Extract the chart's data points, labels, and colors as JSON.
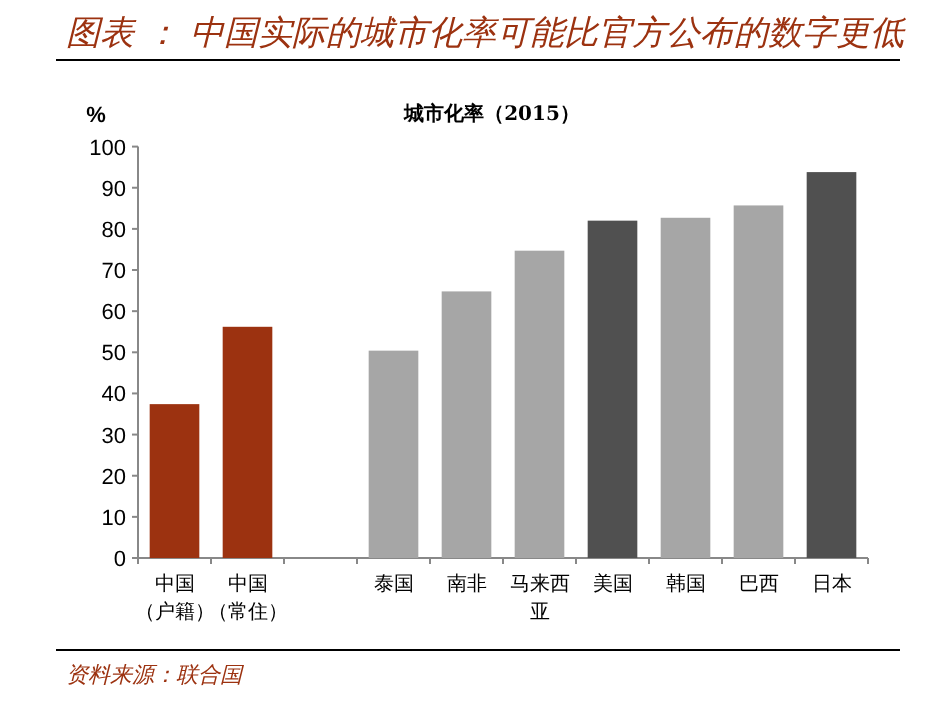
{
  "chart_data": {
    "type": "bar",
    "title": "图表 ： 中国实际的城市化率可能比官方公布的数字更低",
    "subtitle": "城市化率（2015）",
    "ylabel": "%",
    "categories": [
      "中国（户籍）",
      "中国（常住）",
      null,
      "泰国",
      "南非",
      "马来西亚",
      "美国",
      "韩国",
      "巴西",
      "日本"
    ],
    "values": [
      37.4,
      56.2,
      null,
      50.4,
      64.8,
      74.7,
      82.0,
      82.7,
      85.7,
      93.8
    ],
    "colors": [
      "#9c3210",
      "#9c3210",
      null,
      "#a6a6a6",
      "#a6a6a6",
      "#a6a6a6",
      "#505050",
      "#a6a6a6",
      "#a6a6a6",
      "#505050"
    ],
    "ylim": [
      0,
      100
    ],
    "yticks": [
      0,
      10,
      20,
      30,
      40,
      50,
      60,
      70,
      80,
      90,
      100
    ],
    "grid": false,
    "annotations": [
      "资料来源：联合国"
    ]
  }
}
